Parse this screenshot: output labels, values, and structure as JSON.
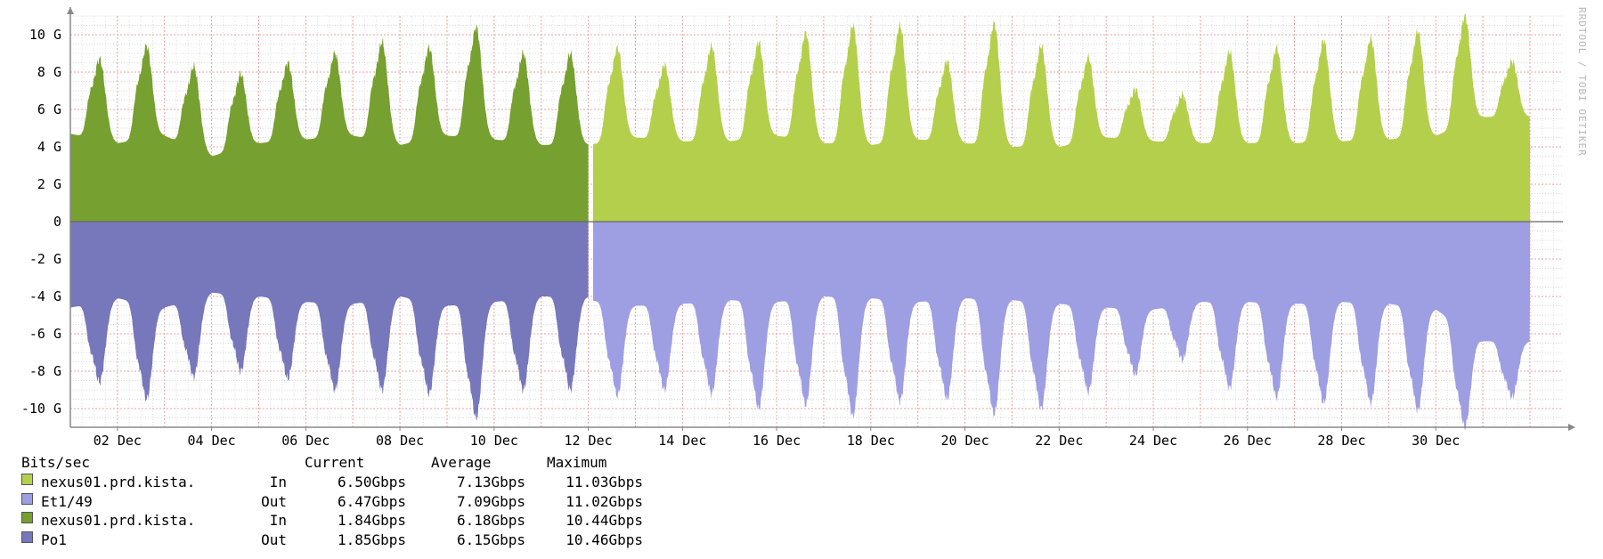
{
  "watermark": "RRDTOOL / TOBI OETIKER",
  "legend": {
    "header": "Bits/sec",
    "col_current": "Current",
    "col_average": "Average",
    "col_maximum": "Maximum",
    "rows": [
      {
        "name": "nexus01.prd.kista.",
        "dir": "In",
        "current": "6.50Gbps",
        "average": "7.13Gbps",
        "maximum": "11.03Gbps",
        "color": "#b4cf4c"
      },
      {
        "name": "Et1/49",
        "dir": "Out",
        "current": "6.47Gbps",
        "average": "7.09Gbps",
        "maximum": "11.02Gbps",
        "color": "#9e9ee2"
      },
      {
        "name": "nexus01.prd.kista.",
        "dir": "In",
        "current": "1.84Gbps",
        "average": "6.18Gbps",
        "maximum": "10.44Gbps",
        "color": "#76a02f"
      },
      {
        "name": "Po1",
        "dir": "Out",
        "current": "1.85Gbps",
        "average": "6.15Gbps",
        "maximum": "10.46Gbps",
        "color": "#7777bb"
      }
    ]
  },
  "chart_data": {
    "type": "area",
    "ylabel": "Bits/sec",
    "ylim": [
      -11,
      11
    ],
    "y_ticks": [
      {
        "value": 10,
        "label": "10 G"
      },
      {
        "value": 8,
        "label": "8 G"
      },
      {
        "value": 6,
        "label": "6 G"
      },
      {
        "value": 4,
        "label": "4 G"
      },
      {
        "value": 2,
        "label": "2 G"
      },
      {
        "value": 0,
        "label": "0"
      },
      {
        "value": -2,
        "label": "-2 G"
      },
      {
        "value": -4,
        "label": "-4 G"
      },
      {
        "value": -6,
        "label": "-6 G"
      },
      {
        "value": -8,
        "label": "-8 G"
      },
      {
        "value": -10,
        "label": "-10 G"
      }
    ],
    "x_range_days": [
      1,
      32.7
    ],
    "x_ticks": [
      {
        "day": 2,
        "label": "02 Dec"
      },
      {
        "day": 4,
        "label": "04 Dec"
      },
      {
        "day": 6,
        "label": "06 Dec"
      },
      {
        "day": 8,
        "label": "08 Dec"
      },
      {
        "day": 10,
        "label": "10 Dec"
      },
      {
        "day": 12,
        "label": "12 Dec"
      },
      {
        "day": 14,
        "label": "14 Dec"
      },
      {
        "day": 16,
        "label": "16 Dec"
      },
      {
        "day": 18,
        "label": "18 Dec"
      },
      {
        "day": 20,
        "label": "20 Dec"
      },
      {
        "day": 22,
        "label": "22 Dec"
      },
      {
        "day": 24,
        "label": "24 Dec"
      },
      {
        "day": 26,
        "label": "26 Dec"
      },
      {
        "day": 28,
        "label": "28 Dec"
      },
      {
        "day": 30,
        "label": "30 Dec"
      }
    ],
    "grid": true,
    "days": [
      1,
      2,
      3,
      4,
      5,
      6,
      7,
      8,
      9,
      10,
      11,
      12,
      13,
      14,
      15,
      16,
      17,
      18,
      19,
      20,
      21,
      22,
      23,
      24,
      25,
      26,
      27,
      28,
      29,
      30,
      31
    ],
    "series": [
      {
        "name": "nexus01.prd.kista. Et1/49 In",
        "color": "#b4cf4c",
        "sign": 1,
        "day_range": [
          12.1,
          32.0
        ],
        "daily_peak": [
          null,
          null,
          null,
          null,
          null,
          null,
          null,
          null,
          null,
          null,
          null,
          9.3,
          8.4,
          9.4,
          9.6,
          10.1,
          10.5,
          10.5,
          8.6,
          10.6,
          9.4,
          8.8,
          7.1,
          6.8,
          9.1,
          9.3,
          9.7,
          9.8,
          10.2,
          11.0,
          8.6
        ],
        "daily_low": [
          null,
          null,
          null,
          null,
          null,
          null,
          null,
          null,
          null,
          null,
          null,
          4.1,
          4.5,
          4.3,
          4.3,
          4.6,
          4.2,
          4.1,
          4.4,
          4.2,
          4.0,
          4.0,
          4.5,
          4.3,
          4.2,
          4.2,
          4.2,
          4.3,
          4.4,
          4.6,
          5.6
        ]
      },
      {
        "name": "nexus01.prd.kista. Et1/49 Out",
        "color": "#9e9ee2",
        "sign": -1,
        "day_range": [
          12.1,
          32.0
        ],
        "daily_peak": [
          null,
          null,
          null,
          null,
          null,
          null,
          null,
          null,
          null,
          null,
          null,
          9.3,
          9.0,
          9.2,
          10.0,
          9.8,
          10.4,
          9.6,
          9.5,
          10.3,
          10.0,
          9.1,
          8.2,
          7.4,
          8.9,
          9.4,
          9.7,
          9.7,
          10.1,
          11.0,
          9.4
        ],
        "daily_low": [
          null,
          null,
          null,
          null,
          null,
          null,
          null,
          null,
          null,
          null,
          null,
          4.2,
          4.5,
          4.4,
          4.2,
          4.3,
          4.0,
          4.1,
          4.3,
          4.1,
          4.2,
          4.4,
          4.6,
          4.7,
          4.3,
          4.3,
          4.4,
          4.3,
          4.4,
          4.7,
          6.4
        ]
      },
      {
        "name": "nexus01.prd.kista. Po1 In",
        "color": "#76a02f",
        "sign": 1,
        "day_range": [
          1.0,
          12.0
        ],
        "daily_peak": [
          8.7,
          9.4,
          8.3,
          7.9,
          8.5,
          9.0,
          9.6,
          9.3,
          10.4,
          9.0,
          9.0,
          null,
          null,
          null,
          null,
          null,
          null,
          null,
          null,
          null,
          null,
          null,
          null,
          null,
          null,
          null,
          null,
          null,
          null,
          null,
          null
        ],
        "daily_low": [
          4.7,
          4.2,
          4.6,
          3.5,
          4.2,
          4.4,
          4.6,
          4.1,
          4.6,
          4.4,
          4.1,
          null,
          null,
          null,
          null,
          null,
          null,
          null,
          null,
          null,
          null,
          null,
          null,
          null,
          null,
          null,
          null,
          null,
          null,
          null,
          null
        ]
      },
      {
        "name": "nexus01.prd.kista. Po1 Out",
        "color": "#7777bb",
        "sign": -1,
        "day_range": [
          1.0,
          12.0
        ],
        "daily_peak": [
          8.6,
          9.5,
          8.3,
          8.0,
          8.4,
          9.0,
          9.0,
          9.2,
          10.5,
          9.0,
          9.0,
          null,
          null,
          null,
          null,
          null,
          null,
          null,
          null,
          null,
          null,
          null,
          null,
          null,
          null,
          null,
          null,
          null,
          null,
          null,
          null
        ],
        "daily_low": [
          4.6,
          4.1,
          4.6,
          3.8,
          4.0,
          4.3,
          4.4,
          4.0,
          4.5,
          4.3,
          4.0,
          null,
          null,
          null,
          null,
          null,
          null,
          null,
          null,
          null,
          null,
          null,
          null,
          null,
          null,
          null,
          null,
          null,
          null,
          null,
          null
        ]
      }
    ]
  }
}
